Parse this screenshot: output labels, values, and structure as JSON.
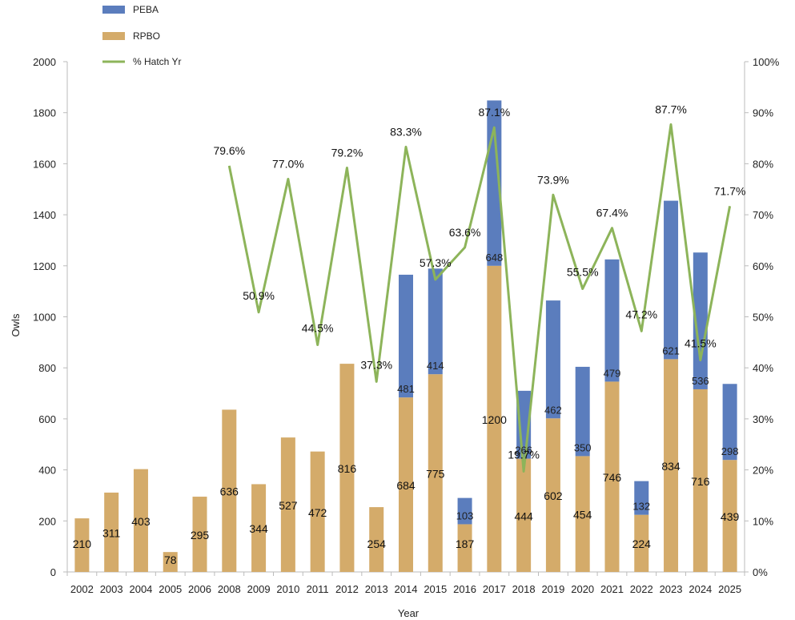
{
  "chart_data": {
    "type": "bar",
    "stacked": true,
    "categories": [
      "2002",
      "2003",
      "2004",
      "2005",
      "2006",
      "2008",
      "2009",
      "2010",
      "2011",
      "2012",
      "2013",
      "2014",
      "2015",
      "2016",
      "2017",
      "2018",
      "2019",
      "2020",
      "2021",
      "2022",
      "2023",
      "2024",
      "2025"
    ],
    "series": [
      {
        "name": "RPBO",
        "color": "#d4ab6a",
        "axis": "left",
        "values": [
          210,
          311,
          403,
          78,
          295,
          636,
          344,
          527,
          472,
          816,
          254,
          684,
          775,
          187,
          1200,
          444,
          602,
          454,
          746,
          224,
          834,
          716,
          439
        ]
      },
      {
        "name": "PEBA",
        "color": "#5b7dbd",
        "axis": "left",
        "values": [
          null,
          null,
          null,
          null,
          null,
          null,
          null,
          null,
          null,
          null,
          null,
          481,
          414,
          103,
          648,
          266,
          462,
          350,
          479,
          132,
          621,
          536,
          298
        ]
      },
      {
        "name": "% Hatch Yr",
        "type": "line",
        "color": "#8db45a",
        "axis": "right",
        "values": [
          null,
          null,
          null,
          null,
          null,
          79.6,
          50.9,
          77.0,
          44.5,
          79.2,
          37.3,
          83.3,
          57.3,
          63.6,
          87.1,
          19.7,
          73.9,
          55.5,
          67.4,
          47.2,
          87.7,
          41.5,
          71.7
        ],
        "labels": [
          null,
          null,
          null,
          null,
          null,
          "79.6%",
          "50.9%",
          "77.0%",
          "44.5%",
          "79.2%",
          "37.3%",
          "83.3%",
          "57.3%",
          "63.6%",
          "87.1%",
          "19.7%",
          "73.9%",
          "55.5%",
          "67.4%",
          "47.2%",
          "87.7%",
          "41.5%",
          "71.7%"
        ]
      }
    ],
    "xlabel": "Year",
    "ylabel": "Owls",
    "ylim": [
      0,
      2000
    ],
    "y_ticks": [
      "0",
      "200",
      "400",
      "600",
      "800",
      "1000",
      "1200",
      "1400",
      "1600",
      "1800",
      "2000"
    ],
    "y2lim": [
      0,
      100
    ],
    "y2_ticks": [
      "0%",
      "10%",
      "20%",
      "30%",
      "40%",
      "50%",
      "60%",
      "70%",
      "80%",
      "90%",
      "100%"
    ],
    "legend": [
      "PEBA",
      "RPBO",
      "% Hatch Yr"
    ],
    "legend_position": "top-left",
    "grid": false
  }
}
